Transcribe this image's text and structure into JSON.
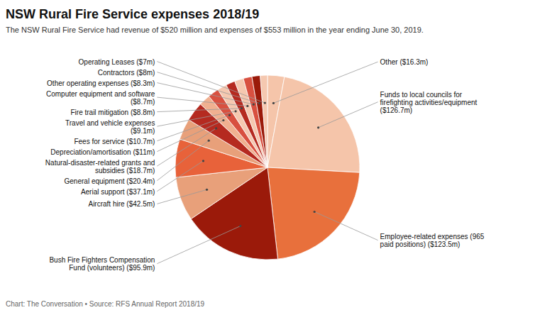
{
  "chart_data": {
    "type": "pie",
    "title": "NSW Rural Fire Service expenses 2018/19",
    "subtitle": "The NSW Rural Fire Service had revenue of $520 million and expenses of $553 million in the year ending June 30, 2019.",
    "footer": "Chart: The Conversation • Source: RFS Annual Report 2018/19",
    "categories": [
      "Other ($16.3m)",
      "Funds to local councils for\nfirefighting activities/equipment\n($126.7m)",
      "Employee-related expenses (965\npaid positions) ($123.5m)",
      "Bush Fire Fighters Compensation\nFund (volunteers) ($95.9m)",
      "Aircraft hire ($42.5m)",
      "Aerial support ($37.1m)",
      "General equipment ($20.4m)",
      "Natural-disaster-related grants and\nsubsidies ($18.7m)",
      "Depreciation/amortisation ($11m)",
      "Fees for service ($10.7m)",
      "Travel and vehicle expenses\n($9.1m)",
      "Fire trail mitigation ($8.8m)",
      "Computer equipment and software\n($8.7m)",
      "Other operating expenses ($8.3m)",
      "Contractors ($8m)",
      "Operating Leases ($7m)"
    ],
    "values": [
      16.3,
      126.7,
      123.5,
      95.9,
      42.5,
      37.1,
      20.4,
      18.7,
      11.0,
      10.7,
      9.1,
      8.8,
      8.7,
      8.3,
      8.0,
      7.0
    ],
    "colors": [
      "#f5c5aa",
      "#f5c5aa",
      "#e8703c",
      "#9b1a0a",
      "#e8a07a",
      "#e8623a",
      "#e8a07a",
      "#b52a20",
      "#f0b090",
      "#d85040",
      "#f5c8b0",
      "#b52a20",
      "#f5c8b0",
      "#d85040",
      "#9b1a0a",
      "#f5c8b0"
    ]
  }
}
